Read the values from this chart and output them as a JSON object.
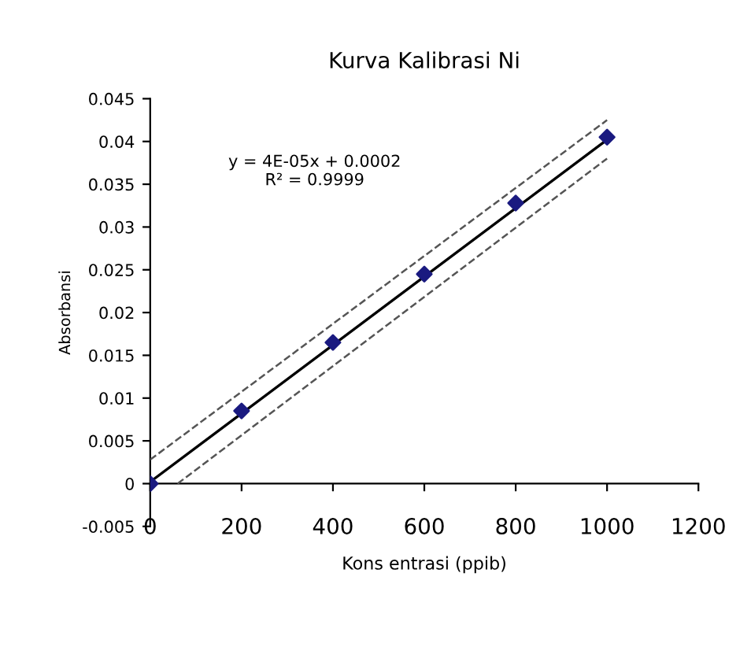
{
  "chart_data": {
    "type": "scatter",
    "title": "Kurva Kalibrasi Ni",
    "xlabel": "Kons entrasi (ppib)",
    "ylabel": "Absorbansi",
    "annotations": [
      "y = 4E-05x + 0.0002\nR² = 0.9999"
    ],
    "series": [
      {
        "color": "#1a1a80",
        "marker": "diamond",
        "x": [
          0,
          200,
          400,
          600,
          800,
          1000
        ],
        "values": [
          0,
          0.0085,
          0.0165,
          0.0245,
          0.0328,
          0.0405
        ]
      },
      {
        "type": "line",
        "color": "#000000",
        "line_style": "solid",
        "marker": "none",
        "x": [
          0,
          1000
        ],
        "values": [
          0.0002,
          0.0402
        ]
      },
      {
        "type": "line",
        "color": "#555555",
        "line_style": "dashed",
        "marker": "none",
        "x": [
          0,
          1000
        ],
        "values": [
          0.0028,
          0.0425
        ]
      },
      {
        "type": "line",
        "color": "#555555",
        "line_style": "dashed",
        "marker": "none",
        "x": [
          60,
          1000
        ],
        "values": [
          0.0,
          0.038
        ]
      }
    ],
    "xlim": [
      0,
      1200
    ],
    "xticks": [
      0,
      200,
      400,
      600,
      800,
      1000,
      1200
    ],
    "ylim": [
      -0.005,
      0.045
    ],
    "yticks": [
      -0.005,
      0,
      0.005,
      0.01,
      0.015,
      0.02,
      0.025,
      0.03,
      0.035,
      0.04,
      0.045
    ],
    "grid": false,
    "legend": false
  }
}
